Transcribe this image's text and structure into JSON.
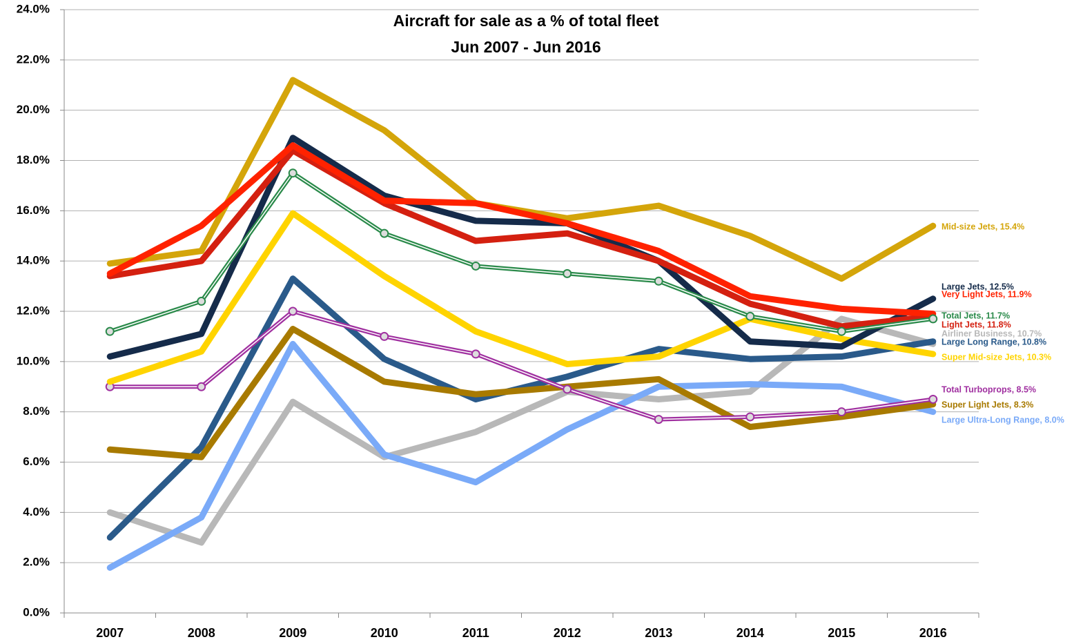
{
  "chart_data": {
    "type": "line",
    "title": "Aircraft for sale as a % of total fleet",
    "subtitle": "Jun 2007 - Jun 2016",
    "categories": [
      "2007",
      "2008",
      "2009",
      "2010",
      "2011",
      "2012",
      "2013",
      "2014",
      "2015",
      "2016"
    ],
    "ylim": [
      0,
      24
    ],
    "yticks": [
      {
        "value": 0,
        "label": "0.0%"
      },
      {
        "value": 2,
        "label": "2.0%"
      },
      {
        "value": 4,
        "label": "4.0%"
      },
      {
        "value": 6,
        "label": "6.0%"
      },
      {
        "value": 8,
        "label": "8.0%"
      },
      {
        "value": 10,
        "label": "10.0%"
      },
      {
        "value": 12,
        "label": "12.0%"
      },
      {
        "value": 14,
        "label": "14.0%"
      },
      {
        "value": 16,
        "label": "16.0%"
      },
      {
        "value": 18,
        "label": "18.0%"
      },
      {
        "value": 20,
        "label": "20.0%"
      },
      {
        "value": 22,
        "label": "22.0%"
      },
      {
        "value": 24,
        "label": "24.0%"
      }
    ],
    "grid": true,
    "series": [
      {
        "name": "Airliner Business, 10.7%",
        "color": "#b8b8b8",
        "values": [
          4.0,
          2.8,
          8.4,
          6.2,
          7.2,
          8.8,
          8.5,
          8.8,
          11.7,
          10.7
        ]
      },
      {
        "name": "Large Ultra-Long Range, 8.0%",
        "color": "#7aaaf8",
        "values": [
          1.8,
          3.8,
          10.7,
          6.3,
          5.2,
          7.3,
          9.0,
          9.1,
          9.0,
          8.0
        ]
      },
      {
        "name": "Large Long Range, 10.8%",
        "color": "#2a5a8a",
        "values": [
          3.0,
          6.6,
          13.3,
          10.1,
          8.5,
          9.4,
          10.5,
          10.1,
          10.2,
          10.8
        ]
      },
      {
        "name": "Super Light Jets, 8.3%",
        "color": "#a87a00",
        "values": [
          6.5,
          6.2,
          11.3,
          9.2,
          8.7,
          9.0,
          9.3,
          7.4,
          7.8,
          8.3
        ]
      },
      {
        "name": "Total Turboprops, 8.5%",
        "color": "#a030a0",
        "markers": true,
        "values": [
          9.0,
          9.0,
          12.0,
          11.0,
          10.3,
          8.9,
          7.7,
          7.8,
          8.0,
          8.5
        ]
      },
      {
        "name": "Super Mid-size Jets, 10.3%",
        "color": "#ffd400",
        "values": [
          9.2,
          10.4,
          15.9,
          13.4,
          11.2,
          9.9,
          10.2,
          11.7,
          10.9,
          10.3
        ]
      },
      {
        "name": "Mid-size Jets, 15.4%",
        "color": "#d4a50a",
        "values": [
          13.9,
          14.4,
          21.2,
          19.2,
          16.3,
          15.7,
          16.2,
          15.0,
          13.3,
          15.4
        ]
      },
      {
        "name": "Large Jets, 12.5%",
        "color": "#152b4a",
        "values": [
          10.2,
          11.1,
          18.9,
          16.6,
          15.6,
          15.5,
          14.0,
          10.8,
          10.6,
          12.5
        ]
      },
      {
        "name": "Light Jets, 11.8%",
        "color": "#d42010",
        "values": [
          13.4,
          14.0,
          18.4,
          16.3,
          14.8,
          15.1,
          14.0,
          12.3,
          11.4,
          11.8
        ]
      },
      {
        "name": "Very Light Jets, 11.9%",
        "color": "#ff2200",
        "values": [
          13.5,
          15.4,
          18.6,
          16.4,
          16.3,
          15.5,
          14.4,
          12.6,
          12.1,
          11.9
        ]
      },
      {
        "name": "Total Jets, 11.7%",
        "color": "#2a8a4a",
        "markers": true,
        "values": [
          11.2,
          12.4,
          17.5,
          15.1,
          13.8,
          13.5,
          13.2,
          11.8,
          11.2,
          11.7
        ]
      }
    ]
  }
}
